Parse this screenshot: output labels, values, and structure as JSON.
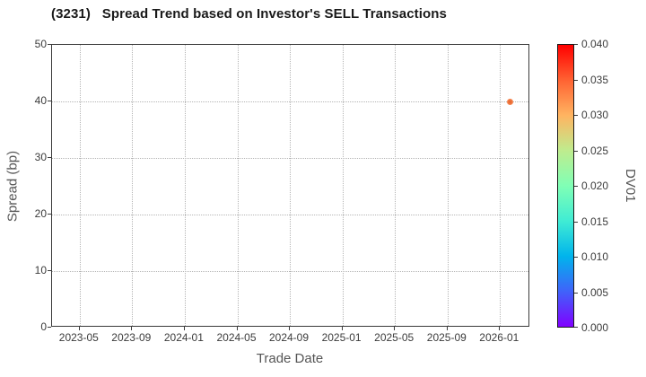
{
  "chart_data": {
    "type": "scatter",
    "title": "(3231)   Spread Trend based on Investor's SELL Transactions",
    "xlabel": "Trade Date",
    "ylabel": "Spread (bp)",
    "x_axis": {
      "unit": "months-since-2023-05",
      "range": [
        -2.1,
        34.3
      ],
      "tick_pos": [
        0,
        4,
        8,
        12,
        16,
        20,
        24,
        28,
        32
      ],
      "tick_labels": [
        "2023-05",
        "2023-09",
        "2024-01",
        "2024-05",
        "2024-09",
        "2025-01",
        "2025-05",
        "2025-09",
        "2026-01"
      ]
    },
    "y_axis": {
      "range": [
        0,
        50
      ],
      "tick_pos": [
        0,
        10,
        20,
        30,
        40,
        50
      ],
      "tick_labels": [
        "0",
        "10",
        "20",
        "30",
        "40",
        "50"
      ]
    },
    "grid": {
      "style": "dotted",
      "color": "#b5b5b5"
    },
    "points": [
      {
        "x_months": 32.75,
        "date_approx": "2026-01",
        "spread_bp": 40,
        "dv01": 0.032,
        "color": "#f5824e"
      }
    ],
    "colorbar": {
      "label": "DV01",
      "range": [
        0.0,
        0.04
      ],
      "tick_labels_top_to_bottom": [
        "0.040",
        "0.035",
        "0.030",
        "0.025",
        "0.020",
        "0.015",
        "0.010",
        "0.005",
        "0.000"
      ],
      "colormap": "rainbow",
      "stops_bottom_to_top": [
        [
          "0.000",
          "#8000ff"
        ],
        [
          "0.005",
          "#4062fa"
        ],
        [
          "0.010",
          "#00b4ec"
        ],
        [
          "0.015",
          "#40ecd4"
        ],
        [
          "0.020",
          "#80ffb5"
        ],
        [
          "0.025",
          "#bfec8e"
        ],
        [
          "0.030",
          "#ffb461"
        ],
        [
          "0.035",
          "#ff6232"
        ],
        [
          "0.040",
          "#ff0000"
        ]
      ]
    },
    "legend": null,
    "background": "#ffffff"
  }
}
